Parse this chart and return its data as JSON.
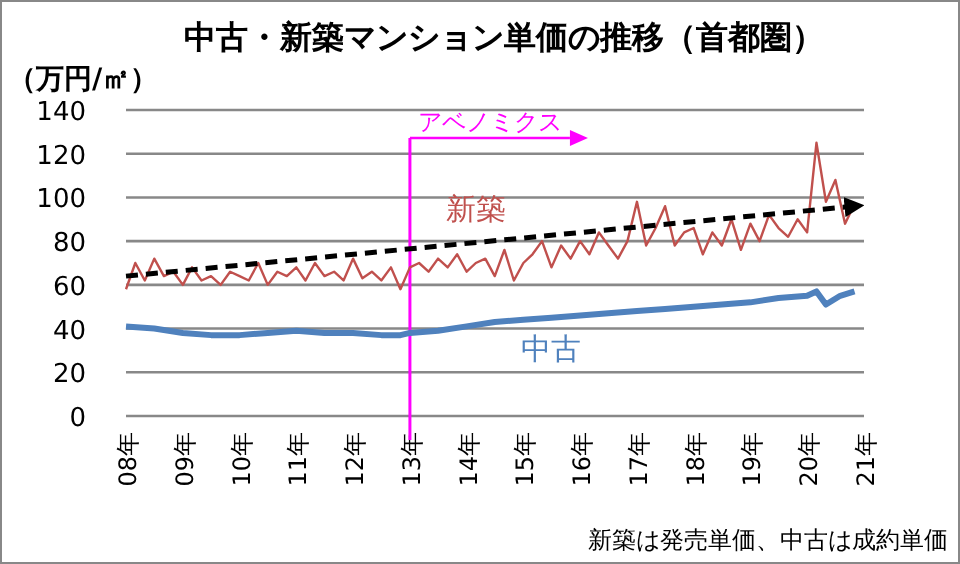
{
  "chart_data": {
    "type": "line",
    "title": "中古・新築マンション単価の推移（首都圏）",
    "ylabel": "（万円/㎡）",
    "xlim": [
      "2008-01",
      "2021-01"
    ],
    "xticks": [
      {
        "value": "2008",
        "label": "08年"
      },
      {
        "value": "2009",
        "label": "09年"
      },
      {
        "value": "2010",
        "label": "10年"
      },
      {
        "value": "2011",
        "label": "11年"
      },
      {
        "value": "2012",
        "label": "12年"
      },
      {
        "value": "2013",
        "label": "13年"
      },
      {
        "value": "2014",
        "label": "14年"
      },
      {
        "value": "2015",
        "label": "15年"
      },
      {
        "value": "2016",
        "label": "16年"
      },
      {
        "value": "2017",
        "label": "17年"
      },
      {
        "value": "2018",
        "label": "18年"
      },
      {
        "value": "2019",
        "label": "19年"
      },
      {
        "value": "2020",
        "label": "20年"
      },
      {
        "value": "2021",
        "label": "21年"
      }
    ],
    "ylim": [
      0,
      140
    ],
    "yticks": [
      0,
      20,
      40,
      60,
      80,
      100,
      120,
      140
    ],
    "grid": "y",
    "series": [
      {
        "name": "新築",
        "color": "#c0504d",
        "x": [
          "2008-01",
          "2008-03",
          "2008-05",
          "2008-07",
          "2008-09",
          "2008-11",
          "2009-01",
          "2009-03",
          "2009-05",
          "2009-07",
          "2009-09",
          "2009-11",
          "2010-01",
          "2010-03",
          "2010-05",
          "2010-07",
          "2010-09",
          "2010-11",
          "2011-01",
          "2011-03",
          "2011-05",
          "2011-07",
          "2011-09",
          "2011-11",
          "2012-01",
          "2012-03",
          "2012-05",
          "2012-07",
          "2012-09",
          "2012-11",
          "2013-01",
          "2013-03",
          "2013-05",
          "2013-07",
          "2013-09",
          "2013-11",
          "2014-01",
          "2014-03",
          "2014-05",
          "2014-07",
          "2014-09",
          "2014-11",
          "2015-01",
          "2015-03",
          "2015-05",
          "2015-07",
          "2015-09",
          "2015-11",
          "2016-01",
          "2016-03",
          "2016-05",
          "2016-07",
          "2016-09",
          "2016-11",
          "2017-01",
          "2017-03",
          "2017-05",
          "2017-07",
          "2017-09",
          "2017-11",
          "2018-01",
          "2018-03",
          "2018-05",
          "2018-07",
          "2018-09",
          "2018-11",
          "2019-01",
          "2019-03",
          "2019-05",
          "2019-07",
          "2019-09",
          "2019-11",
          "2020-01",
          "2020-03",
          "2020-05",
          "2020-07",
          "2020-09",
          "2020-11"
        ],
        "values": [
          58,
          70,
          62,
          72,
          64,
          66,
          60,
          68,
          62,
          64,
          60,
          66,
          64,
          62,
          70,
          60,
          66,
          64,
          68,
          62,
          70,
          64,
          66,
          62,
          72,
          63,
          66,
          62,
          68,
          58,
          68,
          70,
          66,
          72,
          68,
          74,
          66,
          70,
          72,
          64,
          76,
          62,
          70,
          74,
          80,
          68,
          78,
          72,
          80,
          74,
          84,
          78,
          72,
          80,
          98,
          78,
          86,
          96,
          78,
          84,
          86,
          74,
          84,
          78,
          90,
          76,
          88,
          80,
          92,
          86,
          82,
          90,
          84,
          125,
          98,
          108,
          88,
          97
        ]
      },
      {
        "name": "中古",
        "color": "#4f81bd",
        "line_style": "solid",
        "x": [
          "2008-01",
          "2008-07",
          "2009-01",
          "2009-07",
          "2010-01",
          "2010-07",
          "2011-01",
          "2011-07",
          "2012-01",
          "2012-07",
          "2012-11",
          "2013-01",
          "2013-07",
          "2014-01",
          "2014-07",
          "2015-01",
          "2015-07",
          "2016-01",
          "2016-07",
          "2017-01",
          "2017-07",
          "2018-01",
          "2018-07",
          "2019-01",
          "2019-07",
          "2020-01",
          "2020-03",
          "2020-05",
          "2020-08",
          "2020-11"
        ],
        "values": [
          41,
          40,
          38,
          37,
          37,
          38,
          39,
          38,
          38,
          37,
          37,
          38,
          39,
          41,
          43,
          44,
          45,
          46,
          47,
          48,
          49,
          50,
          51,
          52,
          54,
          55,
          57,
          51,
          55,
          57
        ]
      },
      {
        "color": "#000000",
        "line_style": "dashed",
        "x": [
          "2008-01",
          "2020-11"
        ],
        "values": [
          64,
          96
        ]
      }
    ],
    "ref_lines": [
      {
        "axis": "x",
        "value": "2013-01",
        "label": "アベノミクス",
        "color": "#ff00ff"
      }
    ],
    "annotations": [
      "新築は発売単価、中古は成約単価"
    ]
  }
}
